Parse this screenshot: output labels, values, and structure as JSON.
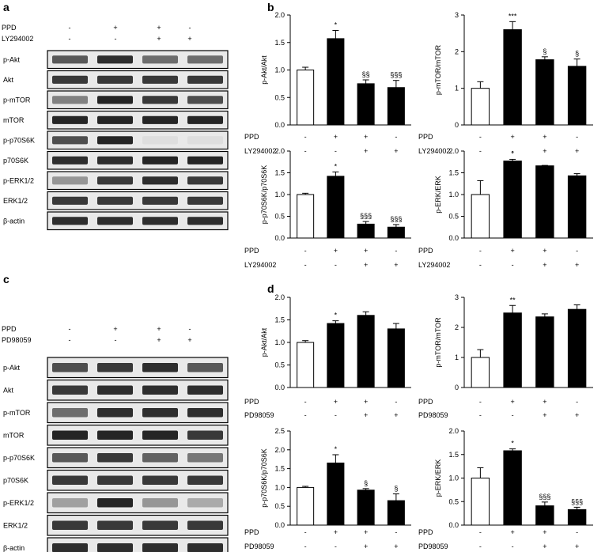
{
  "panel_letters": [
    "a",
    "b",
    "c",
    "d"
  ],
  "colors": {
    "control_bar": "#ffffff",
    "treated_bar": "#000000",
    "blot_band": "#1a1a1a",
    "blot_bg": "#e9e9e9"
  },
  "blots": [
    {
      "panel": "a",
      "conditions": [
        {
          "label": "PPD",
          "signs": [
            "-",
            "+",
            "+",
            "-"
          ]
        },
        {
          "label": "LY294002",
          "signs": [
            "-",
            "-",
            "+",
            "+"
          ]
        }
      ],
      "rows": [
        {
          "label": "p-Akt",
          "intensity": [
            0.7,
            0.9,
            0.6,
            0.6
          ]
        },
        {
          "label": "Akt",
          "intensity": [
            0.85,
            0.85,
            0.85,
            0.85
          ]
        },
        {
          "label": "p-mTOR",
          "intensity": [
            0.5,
            0.95,
            0.85,
            0.75
          ]
        },
        {
          "label": "mTOR",
          "intensity": [
            0.95,
            0.95,
            0.95,
            0.95
          ]
        },
        {
          "label": "p-p70S6K",
          "intensity": [
            0.75,
            0.95,
            0.05,
            0.05
          ]
        },
        {
          "label": "p70S6K",
          "intensity": [
            0.9,
            0.9,
            0.95,
            0.95
          ]
        },
        {
          "label": "p-ERK1/2",
          "intensity": [
            0.4,
            0.85,
            0.9,
            0.85
          ]
        },
        {
          "label": "ERK1/2",
          "intensity": [
            0.85,
            0.85,
            0.85,
            0.85
          ]
        },
        {
          "label": "β-actin",
          "intensity": [
            0.9,
            0.9,
            0.9,
            0.9
          ]
        }
      ]
    },
    {
      "panel": "c",
      "conditions": [
        {
          "label": "PPD",
          "signs": [
            "-",
            "+",
            "+",
            "-"
          ]
        },
        {
          "label": "PD98059",
          "signs": [
            "-",
            "-",
            "+",
            "+"
          ]
        }
      ],
      "rows": [
        {
          "label": "p-Akt",
          "intensity": [
            0.75,
            0.85,
            0.9,
            0.7
          ]
        },
        {
          "label": "Akt",
          "intensity": [
            0.85,
            0.9,
            0.9,
            0.9
          ]
        },
        {
          "label": "p-mTOR",
          "intensity": [
            0.6,
            0.9,
            0.9,
            0.9
          ]
        },
        {
          "label": "mTOR",
          "intensity": [
            0.95,
            0.95,
            0.95,
            0.85
          ]
        },
        {
          "label": "p-p70S6K",
          "intensity": [
            0.7,
            0.85,
            0.65,
            0.55
          ]
        },
        {
          "label": "p70S6K",
          "intensity": [
            0.85,
            0.85,
            0.85,
            0.85
          ]
        },
        {
          "label": "p-ERK1/2",
          "intensity": [
            0.35,
            0.95,
            0.4,
            0.3
          ]
        },
        {
          "label": "ERK1/2",
          "intensity": [
            0.85,
            0.85,
            0.85,
            0.85
          ]
        },
        {
          "label": "β-actin",
          "intensity": [
            0.9,
            0.9,
            0.9,
            0.9
          ]
        }
      ]
    }
  ],
  "chart_data": [
    {
      "type": "bar",
      "panel": "b",
      "ylabel": "p-Akt/Akt",
      "ylim": [
        0,
        2.0
      ],
      "yticks": [
        "0.0",
        "0.5",
        "1.0",
        "1.5",
        "2.0"
      ],
      "yticks_values": [
        0,
        0.5,
        1.0,
        1.5,
        2.0
      ],
      "values": [
        1.0,
        1.57,
        0.75,
        0.68
      ],
      "errors": [
        0.05,
        0.15,
        0.07,
        0.13
      ],
      "annotations": [
        "",
        "*",
        "§§",
        "§§§"
      ],
      "conditions": [
        {
          "label": "PPD",
          "signs": [
            "-",
            "+",
            "+",
            "-"
          ]
        },
        {
          "label": "LY294002",
          "signs": [
            "-",
            "-",
            "+",
            "+"
          ]
        }
      ]
    },
    {
      "type": "bar",
      "panel": "b",
      "ylabel": "p-mTOR/mTOR",
      "ylim": [
        0,
        3
      ],
      "yticks": [
        "0",
        "1",
        "2",
        "3"
      ],
      "yticks_values": [
        0,
        1,
        2,
        3
      ],
      "values": [
        1.0,
        2.6,
        1.78,
        1.6
      ],
      "errors": [
        0.18,
        0.22,
        0.08,
        0.2
      ],
      "annotations": [
        "",
        "***",
        "§",
        "§"
      ],
      "conditions": [
        {
          "label": "PPD",
          "signs": [
            "-",
            "+",
            "+",
            "-"
          ]
        },
        {
          "label": "LY294002",
          "signs": [
            "-",
            "-",
            "+",
            "+"
          ]
        }
      ]
    },
    {
      "type": "bar",
      "panel": "b",
      "ylabel": "p-p70S6K/p70S6K",
      "ylim": [
        0,
        2.0
      ],
      "yticks": [
        "0.0",
        "0.5",
        "1.0",
        "1.5",
        "2.0"
      ],
      "yticks_values": [
        0,
        0.5,
        1.0,
        1.5,
        2.0
      ],
      "values": [
        1.0,
        1.42,
        0.32,
        0.25
      ],
      "errors": [
        0.03,
        0.1,
        0.06,
        0.06
      ],
      "annotations": [
        "",
        "*",
        "§§§",
        "§§§"
      ],
      "conditions": [
        {
          "label": "PPD",
          "signs": [
            "-",
            "+",
            "+",
            "-"
          ]
        },
        {
          "label": "LY294002",
          "signs": [
            "-",
            "-",
            "+",
            "+"
          ]
        }
      ]
    },
    {
      "type": "bar",
      "panel": "b",
      "ylabel": "p-ERK/ERK",
      "ylim": [
        0,
        2.0
      ],
      "yticks": [
        "0.0",
        "0.5",
        "1.0",
        "1.5",
        "2.0"
      ],
      "yticks_values": [
        0,
        0.5,
        1.0,
        1.5,
        2.0
      ],
      "values": [
        1.0,
        1.77,
        1.66,
        1.43
      ],
      "errors": [
        0.32,
        0.04,
        0.01,
        0.05
      ],
      "annotations": [
        "",
        "*",
        "",
        ""
      ],
      "conditions": [
        {
          "label": "PPD",
          "signs": [
            "-",
            "+",
            "+",
            "-"
          ]
        },
        {
          "label": "LY294002",
          "signs": [
            "-",
            "-",
            "+",
            "+"
          ]
        }
      ]
    },
    {
      "type": "bar",
      "panel": "d",
      "ylabel": "p-Akt/Akt",
      "ylim": [
        0,
        2.0
      ],
      "yticks": [
        "0.0",
        "0.5",
        "1.0",
        "1.5",
        "2.0"
      ],
      "yticks_values": [
        0,
        0.5,
        1.0,
        1.5,
        2.0
      ],
      "values": [
        1.0,
        1.42,
        1.6,
        1.3
      ],
      "errors": [
        0.04,
        0.06,
        0.08,
        0.12
      ],
      "annotations": [
        "",
        "*",
        "",
        ""
      ],
      "conditions": [
        {
          "label": "PPD",
          "signs": [
            "-",
            "+",
            "+",
            "-"
          ]
        },
        {
          "label": "PD98059",
          "signs": [
            "-",
            "-",
            "+",
            "+"
          ]
        }
      ]
    },
    {
      "type": "bar",
      "panel": "d",
      "ylabel": "p-mTOR/mTOR",
      "ylim": [
        0,
        3
      ],
      "yticks": [
        "0",
        "1",
        "2",
        "3"
      ],
      "yticks_values": [
        0,
        1,
        2,
        3
      ],
      "values": [
        1.0,
        2.48,
        2.35,
        2.6
      ],
      "errors": [
        0.26,
        0.25,
        0.1,
        0.15
      ],
      "annotations": [
        "",
        "**",
        "",
        ""
      ],
      "conditions": [
        {
          "label": "PPD",
          "signs": [
            "-",
            "+",
            "+",
            "-"
          ]
        },
        {
          "label": "PD98059",
          "signs": [
            "-",
            "-",
            "+",
            "+"
          ]
        }
      ]
    },
    {
      "type": "bar",
      "panel": "d",
      "ylabel": "p-p70S6K/p70S6K",
      "ylim": [
        0,
        2.5
      ],
      "yticks": [
        "0.0",
        "0.5",
        "1.0",
        "1.5",
        "2.0",
        "2.5"
      ],
      "yticks_values": [
        0,
        0.5,
        1.0,
        1.5,
        2.0,
        2.5
      ],
      "values": [
        1.0,
        1.65,
        0.93,
        0.65
      ],
      "errors": [
        0.03,
        0.22,
        0.04,
        0.18
      ],
      "annotations": [
        "",
        "*",
        "§",
        "§"
      ],
      "conditions": [
        {
          "label": "PPD",
          "signs": [
            "-",
            "+",
            "+",
            "-"
          ]
        },
        {
          "label": "PD98059",
          "signs": [
            "-",
            "-",
            "+",
            "+"
          ]
        }
      ]
    },
    {
      "type": "bar",
      "panel": "d",
      "ylabel": "p-ERK/ERK",
      "ylim": [
        0,
        2.0
      ],
      "yticks": [
        "0.0",
        "0.5",
        "1.0",
        "1.5",
        "2.0"
      ],
      "yticks_values": [
        0,
        0.5,
        1.0,
        1.5,
        2.0
      ],
      "values": [
        1.0,
        1.58,
        0.41,
        0.33
      ],
      "errors": [
        0.22,
        0.04,
        0.08,
        0.05
      ],
      "annotations": [
        "",
        "*",
        "§§§",
        "§§§"
      ],
      "conditions": [
        {
          "label": "PPD",
          "signs": [
            "-",
            "+",
            "+",
            "-"
          ]
        },
        {
          "label": "PD98059",
          "signs": [
            "-",
            "-",
            "+",
            "+"
          ]
        }
      ]
    }
  ]
}
